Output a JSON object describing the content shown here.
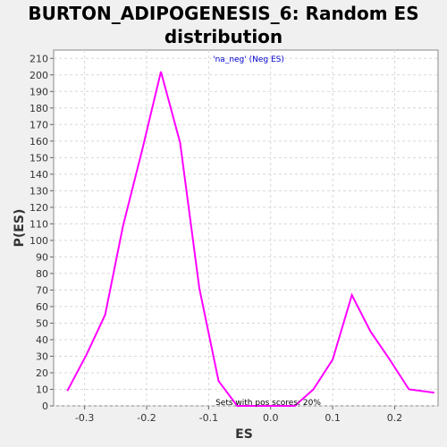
{
  "chart_data": {
    "type": "line",
    "title_line1": "BURTON_ADIPOGENESIS_6: Random ES",
    "title_line2": "distribution",
    "xlabel": "ES",
    "ylabel": "P(ES)",
    "legend_label": "'na_neg' (Neg ES)",
    "annotation": "Sets with pos scores: 20%",
    "xlim": [
      -0.35,
      0.27
    ],
    "ylim": [
      0,
      215
    ],
    "grid": true,
    "line_color": "#ff00ff",
    "x_ticks": [
      -0.3,
      -0.2,
      -0.1,
      0.0,
      0.1,
      0.2
    ],
    "x_tick_labels": [
      "-0.3",
      "-0.2",
      "-0.1",
      "0.0",
      "0.1",
      "0.2"
    ],
    "y_ticks": [
      0,
      10,
      20,
      30,
      40,
      50,
      60,
      70,
      80,
      90,
      100,
      110,
      120,
      130,
      140,
      150,
      160,
      170,
      180,
      190,
      200,
      210
    ],
    "series": [
      {
        "x": [
          -0.328,
          -0.297,
          -0.267,
          -0.238,
          -0.207,
          -0.177,
          -0.146,
          -0.115,
          -0.084,
          -0.054,
          -0.023,
          0.008,
          0.039,
          0.069,
          0.1,
          0.131,
          0.161,
          0.192,
          0.223,
          0.264
        ],
        "y": [
          9,
          31,
          55,
          109,
          155,
          202,
          159,
          71,
          15,
          0,
          0,
          0,
          0,
          10,
          28,
          67,
          45,
          28,
          10,
          8
        ]
      }
    ]
  }
}
